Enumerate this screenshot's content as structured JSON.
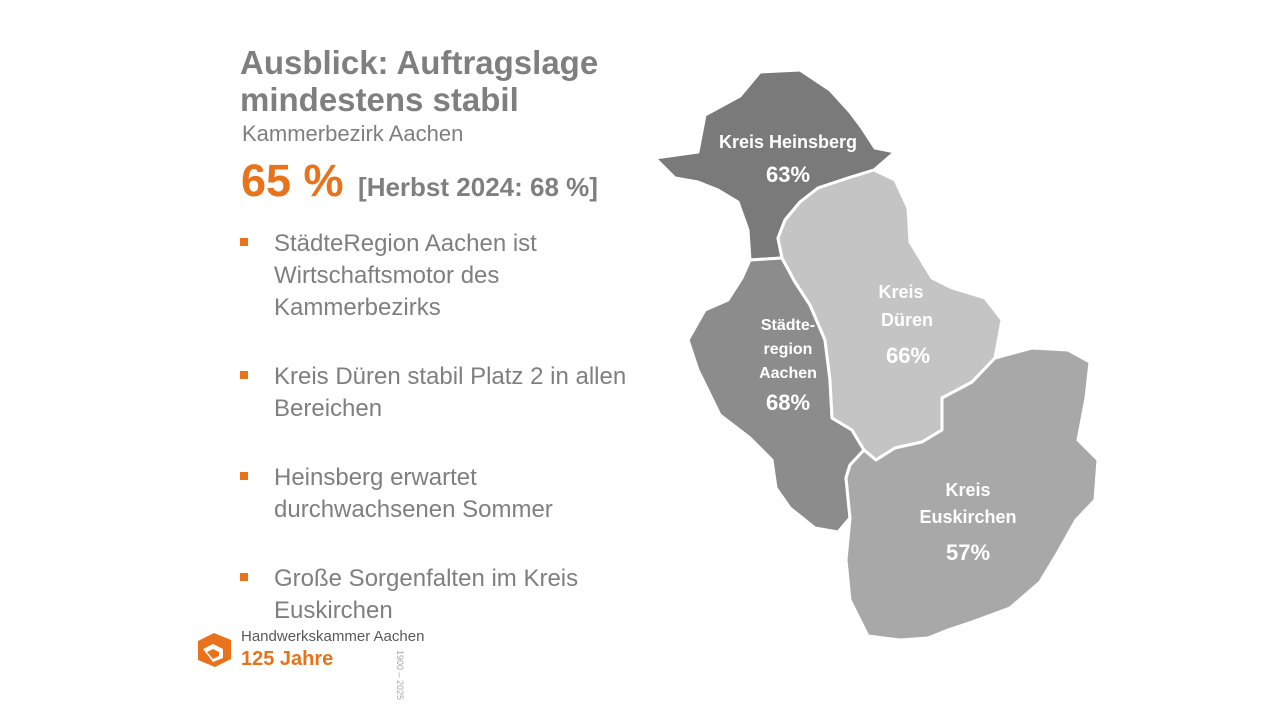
{
  "title": {
    "line1": "Ausblick: Auftragslage",
    "line2": "mindestens stabil"
  },
  "subtitle": "Kammerbezirk Aachen",
  "kpi": {
    "value": "65 %",
    "comparison": "[Herbst 2024: 68 %]"
  },
  "bullets": [
    "StädteRegion Aachen ist Wirtschaftsmotor des Kammerbezirks",
    "Kreis Düren stabil Platz 2 in allen Bereichen",
    "Heinsberg erwartet durchwachsenen Sommer",
    "Große Sorgenfalten im Kreis Euskirchen"
  ],
  "map": {
    "regions": [
      {
        "name_lines": [
          "Kreis Heinsberg"
        ],
        "value": "63%",
        "color": "#7a7a7a"
      },
      {
        "name_lines": [
          "Städte-",
          "region",
          "Aachen"
        ],
        "value": "68%",
        "color": "#8c8c8c"
      },
      {
        "name_lines": [
          "Kreis",
          "Düren"
        ],
        "value": "66%",
        "color": "#c4c4c4"
      },
      {
        "name_lines": [
          "Kreis",
          "Euskirchen"
        ],
        "value": "57%",
        "color": "#a8a8a8"
      }
    ]
  },
  "logo": {
    "name": "Handwerkskammer Aachen",
    "years": "125 Jahre",
    "range": "1900 – 2025"
  },
  "colors": {
    "accent": "#e8731a",
    "text": "#7f7f7f"
  }
}
